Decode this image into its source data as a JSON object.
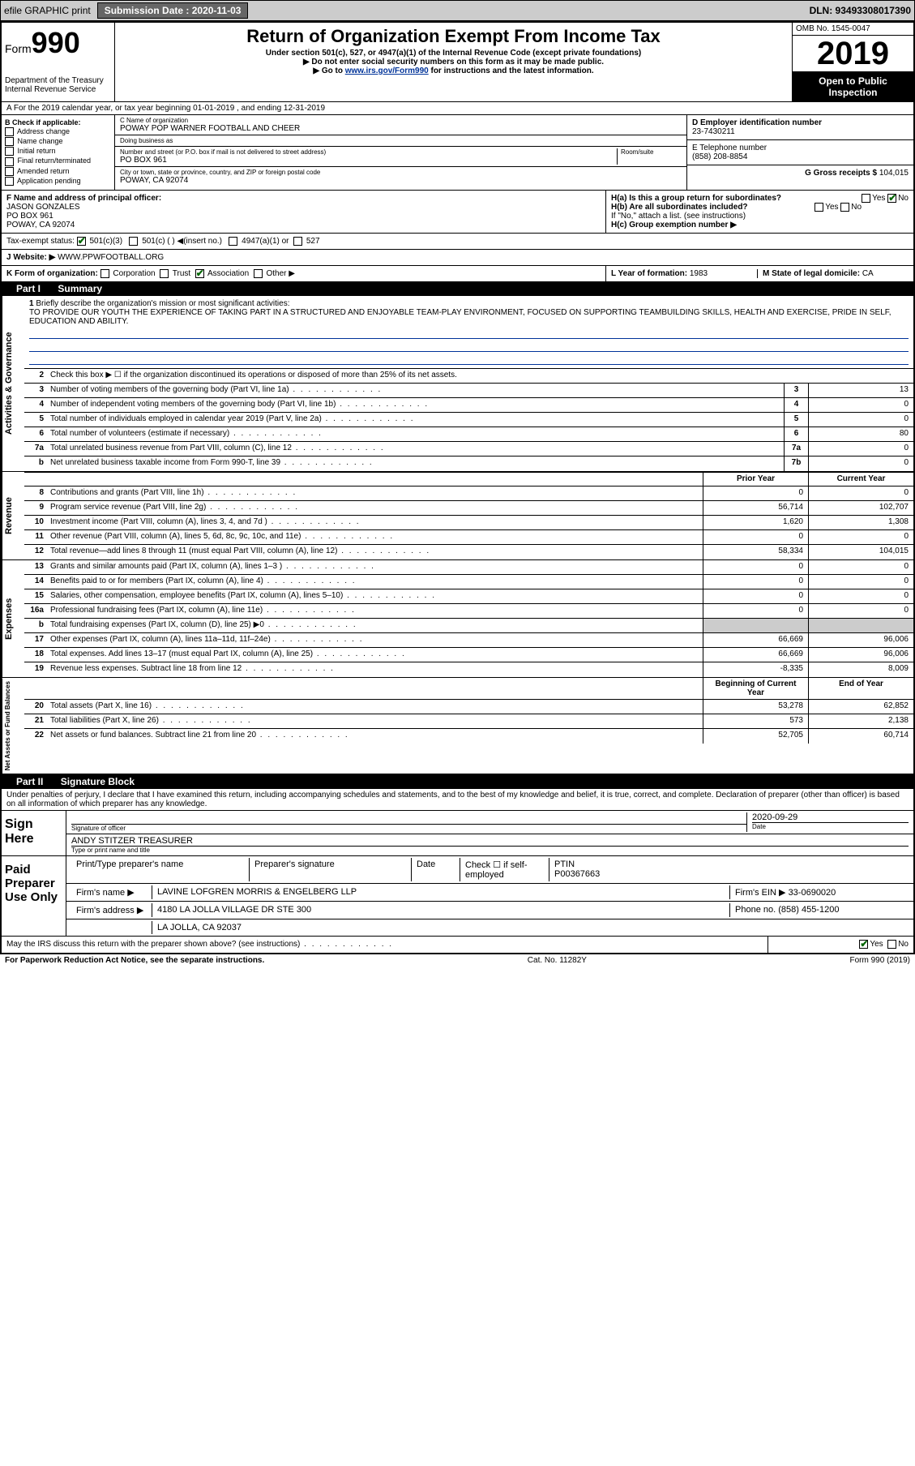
{
  "top": {
    "efile": "efile GRAPHIC print",
    "sub_lbl": "Submission Date : 2020-11-03",
    "dln": "DLN: 93493308017390"
  },
  "hdr": {
    "form": "Form",
    "num": "990",
    "dept": "Department of the Treasury",
    "irs": "Internal Revenue Service",
    "title": "Return of Organization Exempt From Income Tax",
    "sub1": "Under section 501(c), 527, or 4947(a)(1) of the Internal Revenue Code (except private foundations)",
    "sub2": "▶ Do not enter social security numbers on this form as it may be made public.",
    "sub3a": "▶ Go to ",
    "sub3link": "www.irs.gov/Form990",
    "sub3b": " for instructions and the latest information.",
    "omb": "OMB No. 1545-0047",
    "year": "2019",
    "open": "Open to Public Inspection"
  },
  "lineA": "A For the 2019 calendar year, or tax year beginning 01-01-2019    , and ending 12-31-2019",
  "colB": {
    "hdr": "B Check if applicable:",
    "items": [
      "Address change",
      "Name change",
      "Initial return",
      "Final return/terminated",
      "Amended return",
      "Application pending"
    ]
  },
  "colC": {
    "name_lbl": "C Name of organization",
    "name": "POWAY POP WARNER FOOTBALL AND CHEER",
    "dba_lbl": "Doing business as",
    "dba": "",
    "addr_lbl": "Number and street (or P.O. box if mail is not delivered to street address)",
    "room_lbl": "Room/suite",
    "addr": "PO BOX 961",
    "city_lbl": "City or town, state or province, country, and ZIP or foreign postal code",
    "city": "POWAY, CA  92074"
  },
  "colD": {
    "ein_lbl": "D Employer identification number",
    "ein": "23-7430211",
    "tel_lbl": "E Telephone number",
    "tel": "(858) 208-8854",
    "gross_lbl": "G Gross receipts $",
    "gross": "104,015"
  },
  "rowF": {
    "lbl": "F  Name and address of principal officer:",
    "name": "JASON GONZALES",
    "addr1": "PO BOX 961",
    "addr2": "POWAY, CA  92074"
  },
  "rowH": {
    "a_lbl": "H(a)  Is this a group return for subordinates?",
    "a_yes": "Yes",
    "a_no": "No",
    "b_lbl": "H(b)  Are all subordinates included?",
    "b_yes": "Yes",
    "b_no": "No",
    "b_note": "If \"No,\" attach a list. (see instructions)",
    "c_lbl": "H(c)  Group exemption number ▶"
  },
  "rowI": {
    "lbl": "Tax-exempt status:",
    "o1": "501(c)(3)",
    "o2": "501(c) (  ) ◀(insert no.)",
    "o3": "4947(a)(1) or",
    "o4": "527"
  },
  "rowJ": {
    "lbl": "J  Website: ▶",
    "val": "WWW.PPWFOOTBALL.ORG"
  },
  "rowK": {
    "lbl": "K Form of organization:",
    "o1": "Corporation",
    "o2": "Trust",
    "o3": "Association",
    "o4": "Other ▶",
    "l_lbl": "L Year of formation:",
    "l_val": "1983",
    "m_lbl": "M State of legal domicile:",
    "m_val": "CA"
  },
  "part1": {
    "tag": "Part I",
    "title": "Summary"
  },
  "mission": {
    "num": "1",
    "lbl": "Briefly describe the organization's mission or most significant activities:",
    "text": "TO PROVIDE OUR YOUTH THE EXPERIENCE OF TAKING PART IN A STRUCTURED AND ENJOYABLE TEAM-PLAY ENVIRONMENT, FOCUSED ON SUPPORTING TEAMBUILDING SKILLS, HEALTH AND EXERCISE, PRIDE IN SELF, EDUCATION AND ABILITY."
  },
  "gov": {
    "side": "Activities & Governance",
    "r2": "Check this box ▶ ☐  if the organization discontinued its operations or disposed of more than 25% of its net assets.",
    "rows": [
      {
        "n": "3",
        "d": "Number of voting members of the governing body (Part VI, line 1a)",
        "b": "3",
        "v": "13"
      },
      {
        "n": "4",
        "d": "Number of independent voting members of the governing body (Part VI, line 1b)",
        "b": "4",
        "v": "0"
      },
      {
        "n": "5",
        "d": "Total number of individuals employed in calendar year 2019 (Part V, line 2a)",
        "b": "5",
        "v": "0"
      },
      {
        "n": "6",
        "d": "Total number of volunteers (estimate if necessary)",
        "b": "6",
        "v": "80"
      },
      {
        "n": "7a",
        "d": "Total unrelated business revenue from Part VIII, column (C), line 12",
        "b": "7a",
        "v": "0"
      },
      {
        "n": "b",
        "d": "Net unrelated business taxable income from Form 990-T, line 39",
        "b": "7b",
        "v": "0"
      }
    ]
  },
  "colhdrs": {
    "prior": "Prior Year",
    "curr": "Current Year"
  },
  "rev": {
    "side": "Revenue",
    "rows": [
      {
        "n": "8",
        "d": "Contributions and grants (Part VIII, line 1h)",
        "p": "0",
        "c": "0"
      },
      {
        "n": "9",
        "d": "Program service revenue (Part VIII, line 2g)",
        "p": "56,714",
        "c": "102,707"
      },
      {
        "n": "10",
        "d": "Investment income (Part VIII, column (A), lines 3, 4, and 7d )",
        "p": "1,620",
        "c": "1,308"
      },
      {
        "n": "11",
        "d": "Other revenue (Part VIII, column (A), lines 5, 6d, 8c, 9c, 10c, and 11e)",
        "p": "0",
        "c": "0"
      },
      {
        "n": "12",
        "d": "Total revenue—add lines 8 through 11 (must equal Part VIII, column (A), line 12)",
        "p": "58,334",
        "c": "104,015"
      }
    ]
  },
  "exp": {
    "side": "Expenses",
    "rows": [
      {
        "n": "13",
        "d": "Grants and similar amounts paid (Part IX, column (A), lines 1–3 )",
        "p": "0",
        "c": "0"
      },
      {
        "n": "14",
        "d": "Benefits paid to or for members (Part IX, column (A), line 4)",
        "p": "0",
        "c": "0"
      },
      {
        "n": "15",
        "d": "Salaries, other compensation, employee benefits (Part IX, column (A), lines 5–10)",
        "p": "0",
        "c": "0"
      },
      {
        "n": "16a",
        "d": "Professional fundraising fees (Part IX, column (A), line 11e)",
        "p": "0",
        "c": "0"
      },
      {
        "n": "b",
        "d": "Total fundraising expenses (Part IX, column (D), line 25) ▶0",
        "p": "",
        "c": "",
        "shade": true
      },
      {
        "n": "17",
        "d": "Other expenses (Part IX, column (A), lines 11a–11d, 11f–24e)",
        "p": "66,669",
        "c": "96,006"
      },
      {
        "n": "18",
        "d": "Total expenses. Add lines 13–17 (must equal Part IX, column (A), line 25)",
        "p": "66,669",
        "c": "96,006"
      },
      {
        "n": "19",
        "d": "Revenue less expenses. Subtract line 18 from line 12",
        "p": "-8,335",
        "c": "8,009"
      }
    ]
  },
  "na": {
    "side": "Net Assets or Fund Balances",
    "hdr_beg": "Beginning of Current Year",
    "hdr_end": "End of Year",
    "rows": [
      {
        "n": "20",
        "d": "Total assets (Part X, line 16)",
        "p": "53,278",
        "c": "62,852"
      },
      {
        "n": "21",
        "d": "Total liabilities (Part X, line 26)",
        "p": "573",
        "c": "2,138"
      },
      {
        "n": "22",
        "d": "Net assets or fund balances. Subtract line 21 from line 20",
        "p": "52,705",
        "c": "60,714"
      }
    ]
  },
  "part2": {
    "tag": "Part II",
    "title": "Signature Block"
  },
  "decl": "Under penalties of perjury, I declare that I have examined this return, including accompanying schedules and statements, and to the best of my knowledge and belief, it is true, correct, and complete. Declaration of preparer (other than officer) is based on all information of which preparer has any knowledge.",
  "sign": {
    "lbl": "Sign Here",
    "sig_lbl": "Signature of officer",
    "date_lbl": "Date",
    "date": "2020-09-29",
    "name": "ANDY STITZER  TREASURER",
    "name_lbl": "Type or print name and title"
  },
  "prep": {
    "lbl": "Paid Preparer Use Only",
    "r1": {
      "a": "Print/Type preparer's name",
      "b": "Preparer's signature",
      "c": "Date",
      "d_lbl": "Check ☐ if self-employed",
      "e_lbl": "PTIN",
      "e": "P00367663"
    },
    "r2": {
      "a": "Firm's name     ▶",
      "b": "LAVINE LOFGREN MORRIS & ENGELBERG LLP",
      "c": "Firm's EIN ▶",
      "d": "33-0690020"
    },
    "r3": {
      "a": "Firm's address ▶",
      "b": "4180 LA JOLLA VILLAGE DR STE 300",
      "c": "Phone no.",
      "d": "(858) 455-1200"
    },
    "r4": {
      "b": "LA JOLLA, CA  92037"
    }
  },
  "discuss": {
    "q": "May the IRS discuss this return with the preparer shown above? (see instructions)",
    "yes": "Yes",
    "no": "No"
  },
  "foot": {
    "a": "For Paperwork Reduction Act Notice, see the separate instructions.",
    "b": "Cat. No. 11282Y",
    "c": "Form 990 (2019)"
  }
}
